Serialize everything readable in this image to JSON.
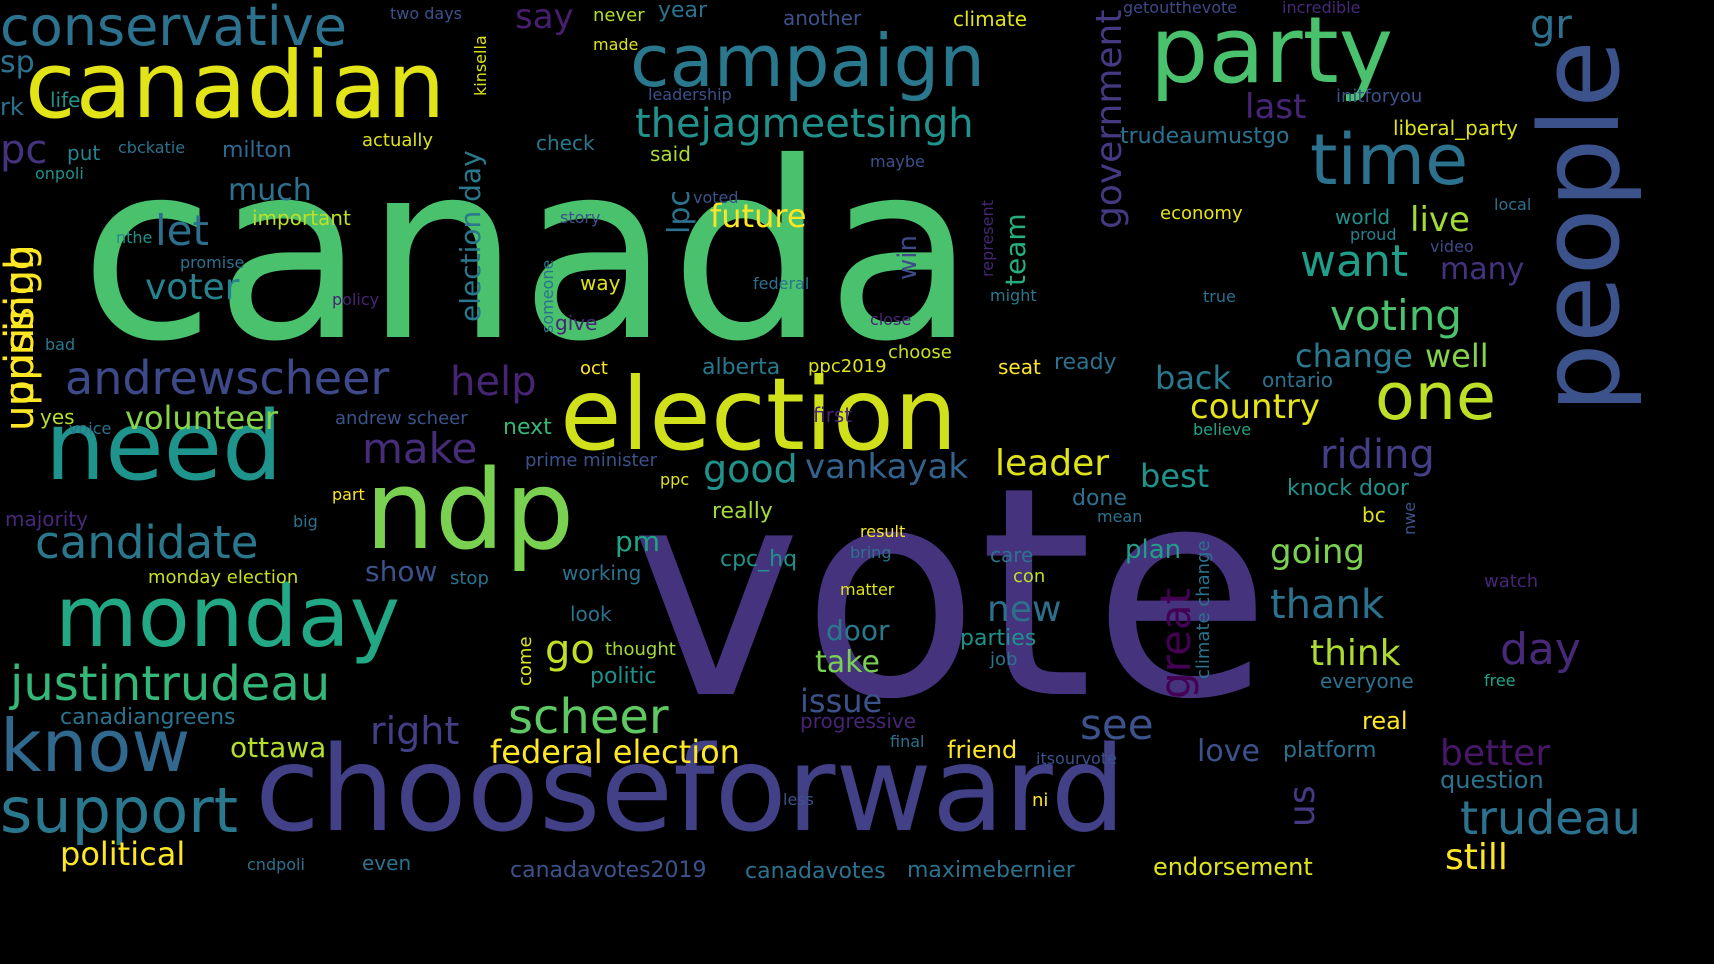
{
  "words": [
    {
      "text": "canada",
      "color": "#4ac16d",
      "orientation": "horizontal"
    },
    {
      "text": "vote",
      "color": "#46337e",
      "orientation": "horizontal"
    },
    {
      "text": "chooseforward",
      "color": "#424086",
      "orientation": "horizontal"
    },
    {
      "text": "election",
      "color": "#d0e11c",
      "orientation": "horizontal"
    },
    {
      "text": "canadian",
      "color": "#e2e418",
      "orientation": "horizontal"
    },
    {
      "text": "party",
      "color": "#4ac16d",
      "orientation": "horizontal"
    },
    {
      "text": "ndp",
      "color": "#7ad151",
      "orientation": "horizontal"
    },
    {
      "text": "need",
      "color": "#1f948c",
      "orientation": "horizontal"
    },
    {
      "text": "monday",
      "color": "#22a884",
      "orientation": "horizontal"
    },
    {
      "text": "campaign",
      "color": "#2a788e",
      "orientation": "horizontal"
    },
    {
      "text": "people",
      "color": "#3b528b",
      "orientation": "vertical"
    },
    {
      "text": "time",
      "color": "#2c728e",
      "orientation": "horizontal"
    },
    {
      "text": "one",
      "color": "#bddf26",
      "orientation": "horizontal"
    },
    {
      "text": "know",
      "color": "#31688e",
      "orientation": "horizontal"
    },
    {
      "text": "support",
      "color": "#2a788e",
      "orientation": "horizontal"
    },
    {
      "text": "conservative",
      "color": "#2c728e",
      "orientation": "horizontal"
    },
    {
      "text": "justintrudeau",
      "color": "#35b779",
      "orientation": "horizontal"
    },
    {
      "text": "andrewscheer",
      "color": "#3e4989",
      "orientation": "horizontal"
    },
    {
      "text": "candidate",
      "color": "#2a788e",
      "orientation": "horizontal"
    },
    {
      "text": "scheer",
      "color": "#5ec962",
      "orientation": "horizontal"
    },
    {
      "text": "thejagmeetsingh",
      "color": "#21918c",
      "orientation": "horizontal"
    },
    {
      "text": "leader",
      "color": "#dde318",
      "orientation": "horizontal"
    },
    {
      "text": "vankayak",
      "color": "#33638d",
      "orientation": "horizontal"
    },
    {
      "text": "good",
      "color": "#21918c",
      "orientation": "horizontal"
    },
    {
      "text": "help",
      "color": "#482475",
      "orientation": "horizontal"
    },
    {
      "text": "make",
      "color": "#472c7a",
      "orientation": "horizontal"
    },
    {
      "text": "let",
      "color": "#2d708e",
      "orientation": "horizontal"
    },
    {
      "text": "voter",
      "color": "#26828e",
      "orientation": "horizontal"
    },
    {
      "text": "uprising",
      "color": "#fde725",
      "orientation": "vertical"
    },
    {
      "text": "uprisingh",
      "color": "#fde725",
      "orientation": "vertical"
    },
    {
      "text": "want",
      "color": "#1f9e89",
      "orientation": "horizontal"
    },
    {
      "text": "voting",
      "color": "#4ac16d",
      "orientation": "horizontal"
    },
    {
      "text": "change",
      "color": "#2a788e",
      "orientation": "horizontal"
    },
    {
      "text": "riding",
      "color": "#433e85",
      "orientation": "horizontal"
    },
    {
      "text": "country",
      "color": "#e5e419",
      "orientation": "horizontal"
    },
    {
      "text": "back",
      "color": "#2a788e",
      "orientation": "horizontal"
    },
    {
      "text": "best",
      "color": "#1f948c",
      "orientation": "horizontal"
    },
    {
      "text": "going",
      "color": "#7ad151",
      "orientation": "horizontal"
    },
    {
      "text": "thank",
      "color": "#2c728e",
      "orientation": "horizontal"
    },
    {
      "text": "think",
      "color": "#addc30",
      "orientation": "horizontal"
    },
    {
      "text": "new",
      "color": "#2d708e",
      "orientation": "horizontal"
    },
    {
      "text": "see",
      "color": "#3b528b",
      "orientation": "horizontal"
    },
    {
      "text": "right",
      "color": "#433e85",
      "orientation": "horizontal"
    },
    {
      "text": "federal election",
      "color": "#fde725",
      "orientation": "horizontal"
    },
    {
      "text": "political",
      "color": "#fde725",
      "orientation": "horizontal"
    },
    {
      "text": "go",
      "color": "#c2df23",
      "orientation": "horizontal"
    },
    {
      "text": "pm",
      "color": "#20a486",
      "orientation": "horizontal"
    },
    {
      "text": "show",
      "color": "#3b528b",
      "orientation": "horizontal"
    },
    {
      "text": "volunteer",
      "color": "#86d549",
      "orientation": "horizontal"
    },
    {
      "text": "future",
      "color": "#fde725",
      "orientation": "horizontal"
    },
    {
      "text": "lpc",
      "color": "#2c728e",
      "orientation": "vertical"
    },
    {
      "text": "government",
      "color": "#443983",
      "orientation": "vertical"
    },
    {
      "text": "election day",
      "color": "#2a788e",
      "orientation": "vertical"
    },
    {
      "text": "last",
      "color": "#482677",
      "orientation": "horizontal"
    },
    {
      "text": "say",
      "color": "#481f70",
      "orientation": "horizontal"
    },
    {
      "text": "much",
      "color": "#2c728e",
      "orientation": "horizontal"
    },
    {
      "text": "live",
      "color": "#a2da37",
      "orientation": "horizontal"
    },
    {
      "text": "many",
      "color": "#46327e",
      "orientation": "horizontal"
    },
    {
      "text": "well",
      "color": "#84d44b",
      "orientation": "horizontal"
    },
    {
      "text": "day",
      "color": "#482878",
      "orientation": "horizontal"
    },
    {
      "text": "better",
      "color": "#481769",
      "orientation": "horizontal"
    },
    {
      "text": "question",
      "color": "#2c728e",
      "orientation": "horizontal"
    },
    {
      "text": "trudeau",
      "color": "#2c728e",
      "orientation": "horizontal"
    },
    {
      "text": "still",
      "color": "#fde725",
      "orientation": "horizontal"
    },
    {
      "text": "us",
      "color": "#443983",
      "orientation": "vertical"
    },
    {
      "text": "great",
      "color": "#440154",
      "orientation": "vertical"
    },
    {
      "text": "team",
      "color": "#26ad81",
      "orientation": "vertical"
    },
    {
      "text": "win",
      "color": "#3e4989",
      "orientation": "vertical"
    },
    {
      "text": "door",
      "color": "#2a788e",
      "orientation": "horizontal"
    },
    {
      "text": "take",
      "color": "#7ad151",
      "orientation": "horizontal"
    },
    {
      "text": "issue",
      "color": "#3b528b",
      "orientation": "horizontal"
    },
    {
      "text": "plan",
      "color": "#1f9e89",
      "orientation": "horizontal"
    },
    {
      "text": "ottawa",
      "color": "#b5de2b",
      "orientation": "horizontal"
    },
    {
      "text": "canadiangreens",
      "color": "#2c728e",
      "orientation": "horizontal"
    },
    {
      "text": "monday election",
      "color": "#c8e020",
      "orientation": "horizontal"
    },
    {
      "text": "majority",
      "color": "#482878",
      "orientation": "horizontal"
    },
    {
      "text": "climate",
      "color": "#dde318",
      "orientation": "horizontal"
    },
    {
      "text": "another",
      "color": "#3b528b",
      "orientation": "horizontal"
    },
    {
      "text": "year",
      "color": "#2c728e",
      "orientation": "horizontal"
    },
    {
      "text": "milton",
      "color": "#31688e",
      "orientation": "horizontal"
    },
    {
      "text": "important",
      "color": "#bddf26",
      "orientation": "horizontal"
    },
    {
      "text": "life",
      "color": "#21918c",
      "orientation": "horizontal"
    },
    {
      "text": "put",
      "color": "#26828e",
      "orientation": "horizontal"
    },
    {
      "text": "check",
      "color": "#2a788e",
      "orientation": "horizontal"
    },
    {
      "text": "said",
      "color": "#addc30",
      "orientation": "horizontal"
    },
    {
      "text": "actually",
      "color": "#dde318",
      "orientation": "horizontal"
    },
    {
      "text": "made",
      "color": "#dde318",
      "orientation": "horizontal"
    },
    {
      "text": "never",
      "color": "#b5de2b",
      "orientation": "horizontal"
    },
    {
      "text": "two days",
      "color": "#3b528b",
      "orientation": "horizontal"
    },
    {
      "text": "kinsella",
      "color": "#dde318",
      "orientation": "vertical"
    },
    {
      "text": "leadership",
      "color": "#3b528b",
      "orientation": "horizontal"
    },
    {
      "text": "getoutthevote",
      "color": "#3e4989",
      "orientation": "horizontal"
    },
    {
      "text": "incredible",
      "color": "#482878",
      "orientation": "horizontal"
    },
    {
      "text": "initforyou",
      "color": "#3b528b",
      "orientation": "horizontal"
    },
    {
      "text": "liberal_party",
      "color": "#dde318",
      "orientation": "horizontal"
    },
    {
      "text": "trudeaumustgo",
      "color": "#2c728e",
      "orientation": "horizontal"
    },
    {
      "text": "economy",
      "color": "#e5e419",
      "orientation": "horizontal"
    },
    {
      "text": "world",
      "color": "#21918c",
      "orientation": "horizontal"
    },
    {
      "text": "local",
      "color": "#2c728e",
      "orientation": "horizontal"
    },
    {
      "text": "proud",
      "color": "#26828e",
      "orientation": "horizontal"
    },
    {
      "text": "video",
      "color": "#3e4989",
      "orientation": "horizontal"
    },
    {
      "text": "true",
      "color": "#2c728e",
      "orientation": "horizontal"
    },
    {
      "text": "might",
      "color": "#2a788e",
      "orientation": "horizontal"
    },
    {
      "text": "federal",
      "color": "#2c728e",
      "orientation": "horizontal"
    },
    {
      "text": "way",
      "color": "#dde318",
      "orientation": "horizontal"
    },
    {
      "text": "story",
      "color": "#3b528b",
      "orientation": "horizontal"
    },
    {
      "text": "voted",
      "color": "#3b528b",
      "orientation": "horizontal"
    },
    {
      "text": "maybe",
      "color": "#3b528b",
      "orientation": "horizontal"
    },
    {
      "text": "represent",
      "color": "#482475",
      "orientation": "vertical"
    },
    {
      "text": "close",
      "color": "#482475",
      "orientation": "horizontal"
    },
    {
      "text": "choose",
      "color": "#c8e020",
      "orientation": "horizontal"
    },
    {
      "text": "seat",
      "color": "#fde725",
      "orientation": "horizontal"
    },
    {
      "text": "ready",
      "color": "#2c728e",
      "orientation": "horizontal"
    },
    {
      "text": "ppc2019",
      "color": "#dde318",
      "orientation": "horizontal"
    },
    {
      "text": "alberta",
      "color": "#2a788e",
      "orientation": "horizontal"
    },
    {
      "text": "ontario",
      "color": "#2c728e",
      "orientation": "horizontal"
    },
    {
      "text": "first",
      "color": "#482475",
      "orientation": "horizontal"
    },
    {
      "text": "oct",
      "color": "#fde725",
      "orientation": "horizontal"
    },
    {
      "text": "give",
      "color": "#482475",
      "orientation": "horizontal"
    },
    {
      "text": "someone",
      "color": "#2c728e",
      "orientation": "vertical"
    },
    {
      "text": "policy",
      "color": "#482475",
      "orientation": "horizontal"
    },
    {
      "text": "promise",
      "color": "#2c728e",
      "orientation": "horizontal"
    },
    {
      "text": "nthe",
      "color": "#21918c",
      "orientation": "horizontal"
    },
    {
      "text": "onpoli",
      "color": "#21918c",
      "orientation": "horizontal"
    },
    {
      "text": "cbckatie",
      "color": "#2c728e",
      "orientation": "horizontal"
    },
    {
      "text": "bad",
      "color": "#2a788e",
      "orientation": "horizontal"
    },
    {
      "text": "yes",
      "color": "#b5de2b",
      "orientation": "horizontal"
    },
    {
      "text": "voice",
      "color": "#2c728e",
      "orientation": "horizontal"
    },
    {
      "text": "andrew scheer",
      "color": "#3b528b",
      "orientation": "horizontal"
    },
    {
      "text": "next",
      "color": "#35b779",
      "orientation": "horizontal"
    },
    {
      "text": "prime minister",
      "color": "#3b528b",
      "orientation": "horizontal"
    },
    {
      "text": "believe",
      "color": "#20a486",
      "orientation": "horizontal"
    },
    {
      "text": "knock door",
      "color": "#21918c",
      "orientation": "horizontal"
    },
    {
      "text": "done",
      "color": "#2c728e",
      "orientation": "horizontal"
    },
    {
      "text": "mean",
      "color": "#2c728e",
      "orientation": "horizontal"
    },
    {
      "text": "bc",
      "color": "#dde318",
      "orientation": "horizontal"
    },
    {
      "text": "nwe",
      "color": "#3b528b",
      "orientation": "vertical"
    },
    {
      "text": "part",
      "color": "#fde725",
      "orientation": "horizontal"
    },
    {
      "text": "big",
      "color": "#2c728e",
      "orientation": "horizontal"
    },
    {
      "text": "really",
      "color": "#a2da37",
      "orientation": "horizontal"
    },
    {
      "text": "ppc",
      "color": "#dde318",
      "orientation": "horizontal"
    },
    {
      "text": "result",
      "color": "#fde725",
      "orientation": "horizontal"
    },
    {
      "text": "bring",
      "color": "#2c728e",
      "orientation": "horizontal"
    },
    {
      "text": "cpc_hq",
      "color": "#21918c",
      "orientation": "horizontal"
    },
    {
      "text": "care",
      "color": "#2c728e",
      "orientation": "horizontal"
    },
    {
      "text": "con",
      "color": "#bddf26",
      "orientation": "horizontal"
    },
    {
      "text": "working",
      "color": "#2c728e",
      "orientation": "horizontal"
    },
    {
      "text": "stop",
      "color": "#2c728e",
      "orientation": "horizontal"
    },
    {
      "text": "matter",
      "color": "#dde318",
      "orientation": "horizontal"
    },
    {
      "text": "climate change",
      "color": "#2c728e",
      "orientation": "vertical"
    },
    {
      "text": "look",
      "color": "#2c728e",
      "orientation": "horizontal"
    },
    {
      "text": "parties",
      "color": "#21918c",
      "orientation": "horizontal"
    },
    {
      "text": "job",
      "color": "#2c728e",
      "orientation": "horizontal"
    },
    {
      "text": "thought",
      "color": "#a2da37",
      "orientation": "horizontal"
    },
    {
      "text": "come",
      "color": "#dde318",
      "orientation": "vertical"
    },
    {
      "text": "politic",
      "color": "#21918c",
      "orientation": "horizontal"
    },
    {
      "text": "progressive",
      "color": "#482475",
      "orientation": "horizontal"
    },
    {
      "text": "final",
      "color": "#2c728e",
      "orientation": "horizontal"
    },
    {
      "text": "friend",
      "color": "#fde725",
      "orientation": "horizontal"
    },
    {
      "text": "itsourvote",
      "color": "#3b528b",
      "orientation": "horizontal"
    },
    {
      "text": "love",
      "color": "#3b528b",
      "orientation": "horizontal"
    },
    {
      "text": "platform",
      "color": "#2c728e",
      "orientation": "horizontal"
    },
    {
      "text": "real",
      "color": "#fde725",
      "orientation": "horizontal"
    },
    {
      "text": "everyone",
      "color": "#2c728e",
      "orientation": "horizontal"
    },
    {
      "text": "free",
      "color": "#20a486",
      "orientation": "horizontal"
    },
    {
      "text": "watch",
      "color": "#482475",
      "orientation": "horizontal"
    },
    {
      "text": "less",
      "color": "#3b528b",
      "orientation": "horizontal"
    },
    {
      "text": "ni",
      "color": "#fde725",
      "orientation": "horizontal"
    },
    {
      "text": "endorsement",
      "color": "#dde318",
      "orientation": "horizontal"
    },
    {
      "text": "maximebernier",
      "color": "#2c728e",
      "orientation": "horizontal"
    },
    {
      "text": "canadavotes",
      "color": "#2c728e",
      "orientation": "horizontal"
    },
    {
      "text": "canadavotes2019",
      "color": "#3b528b",
      "orientation": "horizontal"
    },
    {
      "text": "even",
      "color": "#2c728e",
      "orientation": "horizontal"
    },
    {
      "text": "cndpoli",
      "color": "#2c728e",
      "orientation": "horizontal"
    },
    {
      "text": "gr",
      "color": "#2c728e",
      "orientation": "horizontal"
    },
    {
      "text": "sp",
      "color": "#2c728e",
      "orientation": "horizontal"
    },
    {
      "text": "rk",
      "color": "#2c728e",
      "orientation": "horizontal"
    },
    {
      "text": "pc",
      "color": "#46337e",
      "orientation": "horizontal"
    }
  ]
}
